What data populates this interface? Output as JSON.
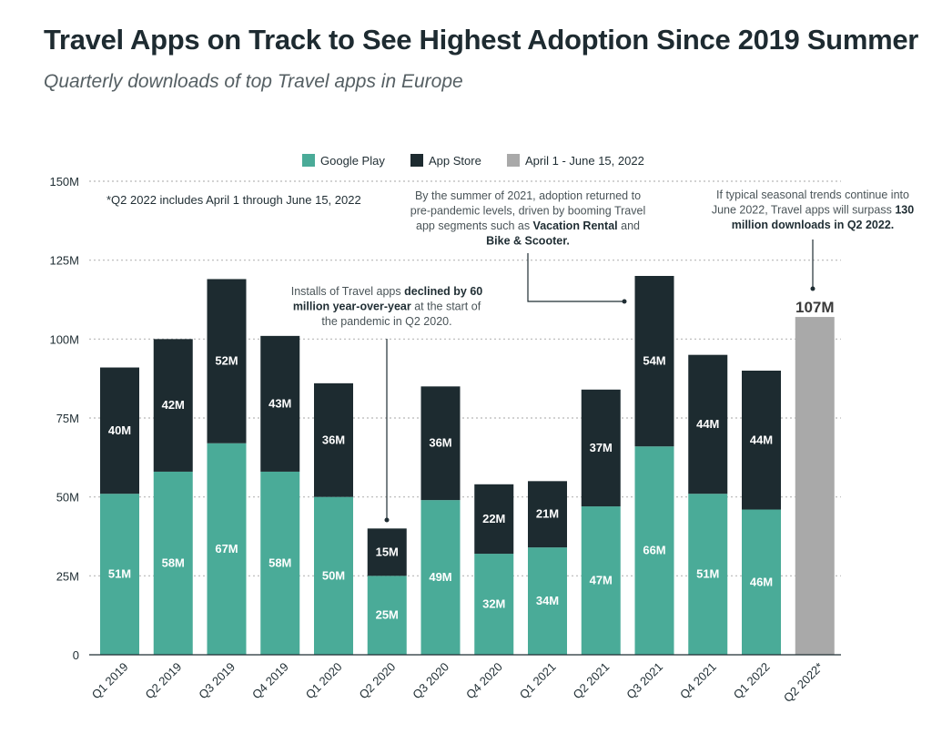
{
  "title": "Travel Apps on Track to See Highest Adoption Since 2019 Summer",
  "subtitle": "Quarterly downloads of top Travel apps in Europe",
  "footnote": "*Q2 2022 includes April 1 through June 15, 2022",
  "colors": {
    "google_play": "#4aab98",
    "app_store": "#1d2b30",
    "projection": "#a9a9a9",
    "grid": "#b8b8b8"
  },
  "legend": [
    {
      "label": "Google Play",
      "color": "#4aab98"
    },
    {
      "label": "App Store",
      "color": "#1d2b30"
    },
    {
      "label": "April 1 - June 15, 2022",
      "color": "#a9a9a9"
    }
  ],
  "annotations": {
    "decline": [
      [
        {
          "t": "Installs of Travel apps ",
          "b": false
        },
        {
          "t": "declined by 60",
          "b": true
        }
      ],
      [
        {
          "t": "million year-over-year",
          "b": true
        },
        {
          "t": " at the start of",
          "b": false
        }
      ],
      [
        {
          "t": "the pandemic in Q2 2020.",
          "b": false
        }
      ]
    ],
    "summer": [
      [
        {
          "t": "By the summer of 2021, adoption returned to",
          "b": false
        }
      ],
      [
        {
          "t": "pre-pandemic levels, driven by booming Travel",
          "b": false
        }
      ],
      [
        {
          "t": "app segments such as ",
          "b": false
        },
        {
          "t": "Vacation Rental",
          "b": true
        },
        {
          "t": " and",
          "b": false
        }
      ],
      [
        {
          "t": "Bike & Scooter.",
          "b": true
        }
      ]
    ],
    "seasonal": [
      [
        {
          "t": "If typical seasonal trends continue into",
          "b": false
        }
      ],
      [
        {
          "t": "June 2022, Travel apps will surpass ",
          "b": false
        },
        {
          "t": "130",
          "b": true
        }
      ],
      [
        {
          "t": "million downloads in Q2 2022.",
          "b": true
        }
      ]
    ]
  },
  "chart_data": {
    "type": "bar",
    "stacked": true,
    "categories": [
      "Q1 2019",
      "Q2 2019",
      "Q3 2019",
      "Q4 2019",
      "Q1 2020",
      "Q2 2020",
      "Q3 2020",
      "Q4 2020",
      "Q1 2021",
      "Q2 2021",
      "Q3 2021",
      "Q4 2021",
      "Q1 2022",
      "Q2 2022*"
    ],
    "series": [
      {
        "name": "Google Play",
        "values": [
          51,
          58,
          67,
          58,
          50,
          25,
          49,
          32,
          34,
          47,
          66,
          51,
          46,
          null
        ],
        "labels": [
          "51M",
          "58M",
          "67M",
          "58M",
          "50M",
          "25M",
          "49M",
          "32M",
          "34M",
          "47M",
          "66M",
          "51M",
          "46M",
          null
        ]
      },
      {
        "name": "App Store",
        "values": [
          40,
          42,
          52,
          43,
          36,
          15,
          36,
          22,
          21,
          37,
          54,
          44,
          44,
          null
        ],
        "labels": [
          "40M",
          "42M",
          "52M",
          "43M",
          "36M",
          "15M",
          "36M",
          "22M",
          "21M",
          "37M",
          "54M",
          "44M",
          "44M",
          null
        ]
      },
      {
        "name": "April 1 - June 15, 2022",
        "values": [
          null,
          null,
          null,
          null,
          null,
          null,
          null,
          null,
          null,
          null,
          null,
          null,
          null,
          107
        ],
        "labels": [
          null,
          null,
          null,
          null,
          null,
          null,
          null,
          null,
          null,
          null,
          null,
          null,
          null,
          "107M"
        ]
      }
    ],
    "yticks": [
      0,
      25,
      50,
      75,
      100,
      125,
      150
    ],
    "ytick_labels": [
      "0",
      "25M",
      "50M",
      "75M",
      "100M",
      "125M",
      "150M"
    ],
    "ylim": [
      0,
      150
    ],
    "xlabel": "",
    "ylabel": "",
    "grid": true
  }
}
